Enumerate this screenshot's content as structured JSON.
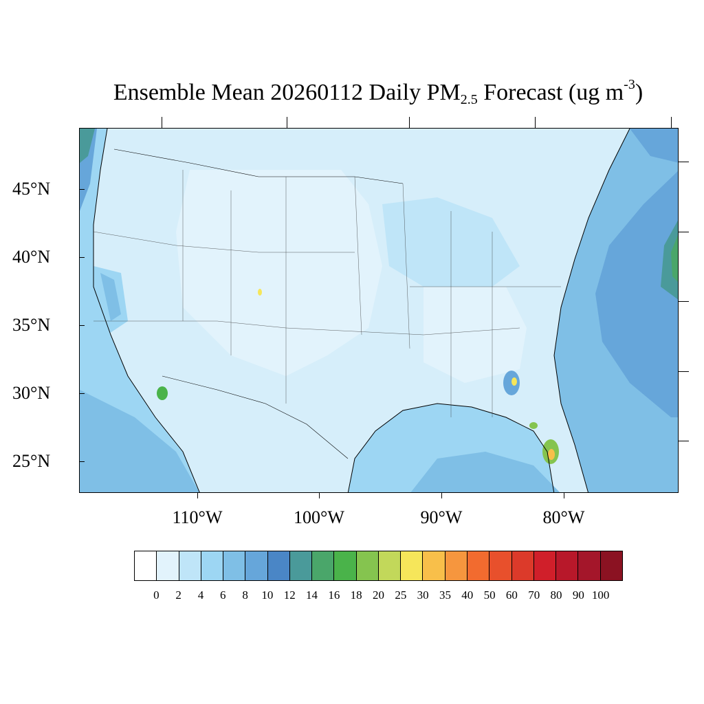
{
  "title": {
    "prefix": "Ensemble Mean 20260112 Daily PM",
    "subscript": "2.5",
    "middle": " Forecast (ug m",
    "superscript": "-3",
    "suffix": ")"
  },
  "lat_labels": [
    "45°N",
    "40°N",
    "35°N",
    "30°N",
    "25°N"
  ],
  "lon_labels": [
    "110°W",
    "100°W",
    "90°W",
    "80°W"
  ],
  "colorbar": {
    "labels": [
      "0",
      "2",
      "4",
      "6",
      "8",
      "10",
      "12",
      "14",
      "16",
      "18",
      "20",
      "25",
      "30",
      "35",
      "40",
      "50",
      "60",
      "70",
      "80",
      "90",
      "100"
    ],
    "colors": [
      "#ffffff",
      "#e2f3fc",
      "#bfe5f8",
      "#9dd6f3",
      "#7fbfe6",
      "#66a6da",
      "#4a86c6",
      "#4a9a9a",
      "#4aa66a",
      "#4ab34a",
      "#85c44f",
      "#c2d85a",
      "#f6e65a",
      "#f8bf4a",
      "#f6963e",
      "#f26b2f",
      "#e8502c",
      "#dc3a2a",
      "#d01f2a",
      "#b8182a",
      "#a4162a",
      "#8b1222"
    ]
  }
}
